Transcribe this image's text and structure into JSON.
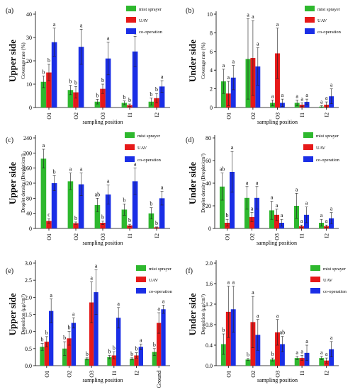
{
  "chart_data": [
    {
      "panel": "(a)",
      "side_label": "Upper side",
      "type": "bar",
      "ylabel": "Coverage rate (%)",
      "xlabel": "sampling position",
      "ylim": [
        0,
        40
      ],
      "yticks": [
        0,
        10,
        20,
        30,
        40
      ],
      "categories": [
        "O1",
        "O2",
        "O3",
        "I1",
        "I2"
      ],
      "series": [
        {
          "name": "mist sprayer",
          "color": "#2eb82e",
          "values": [
            11,
            7.5,
            2.5,
            2,
            2.5
          ],
          "errors": [
            2.5,
            2,
            1,
            0.8,
            1.5
          ],
          "letters": [
            "b",
            "b",
            "b",
            "b",
            "b"
          ]
        },
        {
          "name": "UAV",
          "color": "#e61919",
          "values": [
            15,
            6.5,
            8,
            1,
            4
          ],
          "errors": [
            3.5,
            2.5,
            2,
            0.5,
            2
          ],
          "letters": [
            "b",
            "b",
            "b",
            "b",
            "b"
          ]
        },
        {
          "name": "co-operation",
          "color": "#1a2ee6",
          "values": [
            28,
            26,
            21,
            24,
            9
          ],
          "errors": [
            6,
            7.5,
            7,
            6.5,
            2.5
          ],
          "letters": [
            "a",
            "a",
            "a",
            "a",
            "a"
          ]
        }
      ]
    },
    {
      "panel": "(b)",
      "side_label": "Under side",
      "type": "bar",
      "ylabel": "Coverage rate (%)",
      "xlabel": "sampling position",
      "ylim": [
        0,
        10
      ],
      "yticks": [
        0,
        2,
        4,
        6,
        8,
        10
      ],
      "categories": [
        "O1",
        "O2",
        "O3",
        "I1",
        "I2"
      ],
      "series": [
        {
          "name": "mist sprayer",
          "color": "#2eb82e",
          "values": [
            2.8,
            5.2,
            0.5,
            0.5,
            0.1
          ],
          "errors": [
            1.3,
            4.3,
            0.3,
            0.3,
            0.1
          ],
          "letters": [
            "a",
            "a",
            "a",
            "a",
            "a"
          ]
        },
        {
          "name": "UAV",
          "color": "#e61919",
          "values": [
            1.5,
            5.3,
            5.8,
            0.3,
            0.3
          ],
          "errors": [
            1.3,
            4,
            2.7,
            0.2,
            0.3
          ],
          "letters": [
            "a",
            "a",
            "a",
            "a",
            "a"
          ]
        },
        {
          "name": "co-operation",
          "color": "#1a2ee6",
          "values": [
            3.2,
            4.4,
            0.5,
            0.6,
            1.2
          ],
          "errors": [
            1.3,
            2,
            0.4,
            0.3,
            0.8
          ],
          "letters": [
            "a",
            "a",
            "a",
            "a",
            "a"
          ]
        }
      ]
    },
    {
      "panel": "(c)",
      "side_label": "Upper side",
      "type": "bar",
      "ylabel": "Droplet density (Droplet/cm²)",
      "xlabel": "sampling position",
      "ylim": [
        0,
        240
      ],
      "yticks": [
        0,
        40,
        80,
        120,
        160,
        200,
        240
      ],
      "categories": [
        "O1",
        "O2",
        "O3",
        "I1",
        "I2"
      ],
      "series": [
        {
          "name": "mist sprayer",
          "color": "#2eb82e",
          "values": [
            185,
            125,
            62,
            50,
            40
          ],
          "errors": [
            25,
            22,
            18,
            15,
            15
          ],
          "letters": [
            "a",
            "a",
            "ab",
            "b",
            "b"
          ]
        },
        {
          "name": "UAV",
          "color": "#e61919",
          "values": [
            20,
            14,
            15,
            8,
            3
          ],
          "errors": [
            6,
            3,
            5,
            3,
            1
          ],
          "letters": [
            "c",
            "b",
            "b",
            "b",
            "b"
          ]
        },
        {
          "name": "co-operation",
          "color": "#1a2ee6",
          "values": [
            120,
            117,
            90,
            125,
            80
          ],
          "errors": [
            20,
            30,
            25,
            35,
            18
          ],
          "letters": [
            "b",
            "a",
            "a",
            "a",
            "a"
          ]
        }
      ]
    },
    {
      "panel": "(d)",
      "side_label": "Under side",
      "type": "bar",
      "ylabel": "Droplet density (Droplet/cm²)",
      "xlabel": "sampling position",
      "ylim": [
        0,
        80
      ],
      "yticks": [
        0,
        20,
        40,
        60,
        80
      ],
      "categories": [
        "O1",
        "O2",
        "O3",
        "I1",
        "I2"
      ],
      "series": [
        {
          "name": "mist sprayer",
          "color": "#2eb82e",
          "values": [
            37,
            27,
            16,
            20,
            5
          ],
          "errors": [
            12,
            10,
            8,
            11,
            3
          ],
          "letters": [
            "ab",
            "a",
            "a",
            "a",
            "a"
          ]
        },
        {
          "name": "UAV",
          "color": "#e61919",
          "values": [
            5,
            10,
            12,
            2,
            2
          ],
          "errors": [
            3,
            4,
            5,
            1,
            1
          ],
          "letters": [
            "b",
            "a",
            "a",
            "a",
            "a"
          ]
        },
        {
          "name": "co-operation",
          "color": "#1a2ee6",
          "values": [
            50,
            27,
            5,
            12,
            9
          ],
          "errors": [
            18,
            10,
            3,
            7,
            5
          ],
          "letters": [
            "a",
            "a",
            "a",
            "a",
            "a"
          ]
        }
      ]
    },
    {
      "panel": "(e)",
      "side_label": "Upper side",
      "type": "bar",
      "ylabel": "Deposition (μg/cm²)",
      "xlabel": "sampling position",
      "ylim": [
        0,
        3.0
      ],
      "yticks": [
        0,
        0.5,
        1.0,
        1.5,
        2.0,
        2.5,
        3.0
      ],
      "categories": [
        "O1",
        "O2",
        "O3",
        "I1",
        "I2",
        "Ground"
      ],
      "series": [
        {
          "name": "mist sprayer",
          "color": "#2eb82e",
          "values": [
            0.55,
            0.5,
            0.2,
            0.25,
            0.2,
            0.4
          ],
          "errors": [
            0.1,
            0.2,
            0.03,
            0.05,
            0.03,
            0.1
          ],
          "letters": [
            "b",
            "b",
            "b",
            "b",
            "b",
            "b"
          ]
        },
        {
          "name": "UAV",
          "color": "#e61919",
          "values": [
            0.7,
            0.8,
            1.85,
            0.3,
            0.3,
            1.25
          ],
          "errors": [
            0.15,
            0.2,
            0.6,
            0.1,
            0.08,
            0.3
          ],
          "letters": [
            "b",
            "b",
            "a",
            "b",
            "b",
            "a"
          ]
        },
        {
          "name": "co-operation",
          "color": "#1a2ee6",
          "values": [
            1.6,
            1.25,
            2.15,
            1.4,
            0.55,
            1.65
          ],
          "errors": [
            0.35,
            0.15,
            0.65,
            0.3,
            0.08,
            0.12
          ],
          "letters": [
            "a",
            "a",
            "a",
            "a",
            "a",
            "a"
          ]
        }
      ]
    },
    {
      "panel": "(f)",
      "side_label": "Under side",
      "type": "bar",
      "ylabel": "Deposition (μg/cm²)",
      "xlabel": "sampling position",
      "ylim": [
        0,
        2.0
      ],
      "yticks": [
        0,
        0.4,
        0.8,
        1.2,
        1.6,
        2.0
      ],
      "categories": [
        "O1",
        "O2",
        "O3",
        "I1",
        "I2"
      ],
      "series": [
        {
          "name": "mist sprayer",
          "color": "#2eb82e",
          "values": [
            0.42,
            0.12,
            0.12,
            0.15,
            0.15
          ],
          "errors": [
            0.2,
            0.02,
            0.03,
            0.03,
            0.03
          ],
          "letters": [
            "b",
            "b",
            "b",
            "a",
            "a"
          ]
        },
        {
          "name": "UAV",
          "color": "#e61919",
          "values": [
            1.05,
            0.85,
            0.65,
            0.15,
            0.1
          ],
          "errors": [
            0.5,
            0.5,
            0.25,
            0.05,
            0.05
          ],
          "letters": [
            "a",
            "a",
            "a",
            "a",
            "a"
          ]
        },
        {
          "name": "co-operation",
          "color": "#1a2ee6",
          "values": [
            1.1,
            0.6,
            0.42,
            0.25,
            0.32
          ],
          "errors": [
            0.45,
            0.3,
            0.15,
            0.15,
            0.15
          ],
          "letters": [
            "a",
            "a",
            "ab",
            "a",
            "a"
          ]
        }
      ]
    }
  ]
}
